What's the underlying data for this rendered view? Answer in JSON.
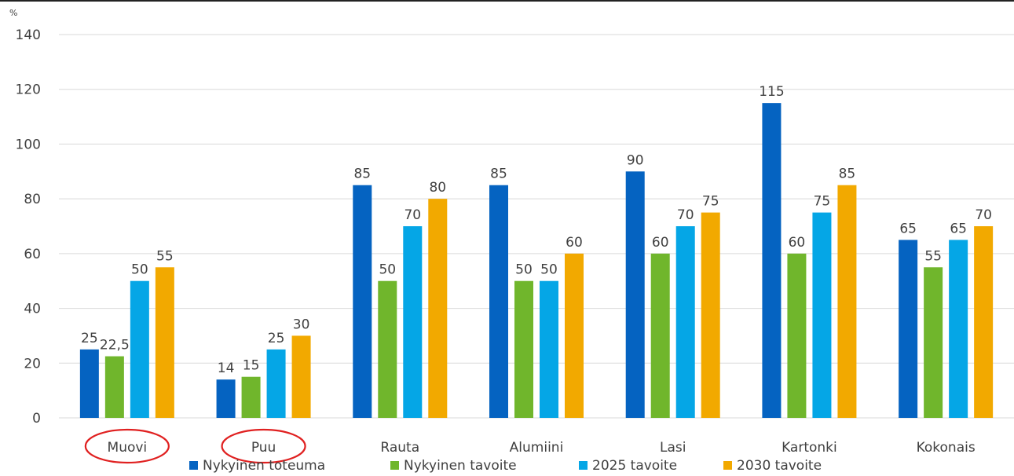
{
  "chart_data": {
    "type": "bar",
    "ylabel": "%",
    "ylim": [
      0,
      140
    ],
    "yticks": [
      0,
      20,
      40,
      60,
      80,
      100,
      120,
      140
    ],
    "grid": true,
    "legend_position": "bottom",
    "categories": [
      "Muovi",
      "Puu",
      "Rauta",
      "Alumiini",
      "Lasi",
      "Kartonki",
      "Kokonais"
    ],
    "highlighted_categories": [
      "Muovi",
      "Puu"
    ],
    "series": [
      {
        "name": "Nykyinen toteuma",
        "color": "#0563C1",
        "values": [
          25,
          14,
          85,
          85,
          90,
          115,
          65
        ],
        "labels": [
          "25",
          "14",
          "85",
          "85",
          "90",
          "115",
          "65"
        ]
      },
      {
        "name": "Nykyinen tavoite",
        "color": "#70B62C",
        "values": [
          22.5,
          15,
          50,
          50,
          60,
          60,
          55
        ],
        "labels": [
          "22,5",
          "15",
          "50",
          "50",
          "60",
          "60",
          "55"
        ]
      },
      {
        "name": "2025 tavoite",
        "color": "#05A6E6",
        "values": [
          50,
          25,
          70,
          50,
          70,
          75,
          65
        ],
        "labels": [
          "50",
          "25",
          "70",
          "50",
          "70",
          "75",
          "65"
        ]
      },
      {
        "name": "2030 tavoite",
        "color": "#F2A900",
        "values": [
          55,
          30,
          80,
          60,
          75,
          85,
          70
        ],
        "labels": [
          "55",
          "30",
          "80",
          "60",
          "75",
          "85",
          "70"
        ]
      }
    ],
    "highlight_color": "#E02020",
    "grid_color": "#D9D9D9",
    "text_color": "#404040"
  }
}
